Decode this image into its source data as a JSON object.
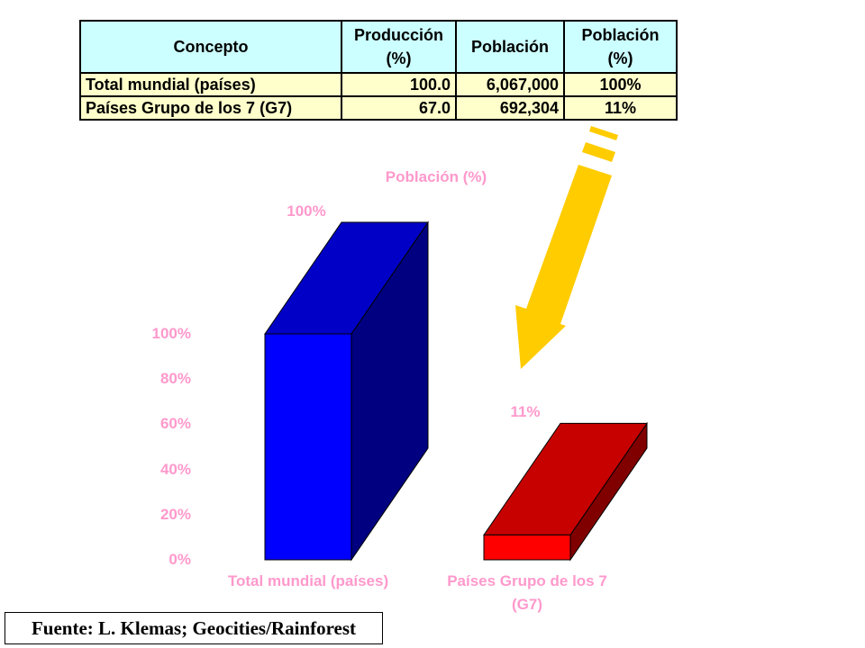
{
  "table": {
    "header": [
      "Concepto",
      "Producción\n(%)",
      "Población",
      "Población\n(%)"
    ],
    "rows": [
      [
        "Total mundial (países)",
        "100.0",
        "6,067,000",
        "100%"
      ],
      [
        "Países Grupo de los 7 (G7)",
        "67.0",
        "692,304",
        "11%"
      ]
    ]
  },
  "chart_data": {
    "type": "bar",
    "title": "Población (%)",
    "categories": [
      "Total mundial (países)",
      "Países Grupo de los 7\n(G7)"
    ],
    "values": [
      100,
      11
    ],
    "value_labels": [
      "100%",
      "11%"
    ],
    "colors": [
      "#0000ff",
      "#ff0000"
    ],
    "ylim": [
      0,
      100
    ],
    "yticks": [
      {
        "value": 0,
        "label": "0%"
      },
      {
        "value": 20,
        "label": "20%"
      },
      {
        "value": 40,
        "label": "40%"
      },
      {
        "value": 60,
        "label": "60%"
      },
      {
        "value": 80,
        "label": "80%"
      },
      {
        "value": 100,
        "label": "100%"
      }
    ]
  },
  "source": "Fuente: L. Klemas; Geocities/Rainforest"
}
